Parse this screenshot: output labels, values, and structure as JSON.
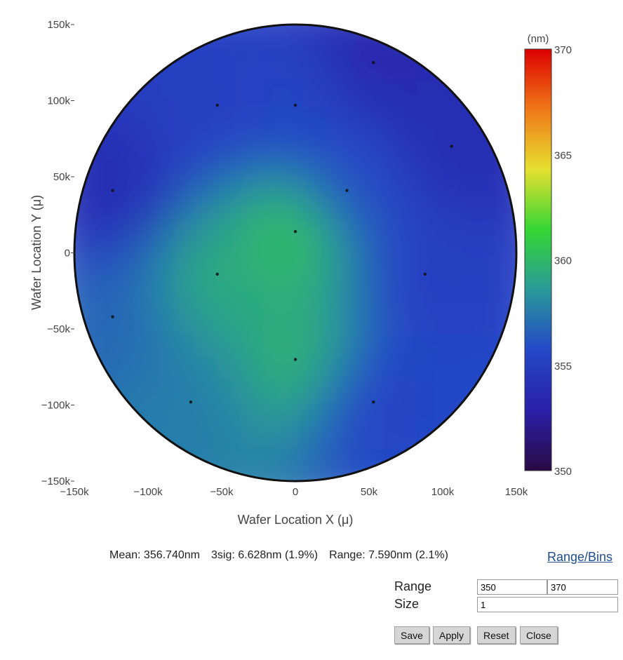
{
  "chart_data": {
    "type": "heatmap",
    "xlabel": "Wafer Location X (μ)",
    "ylabel": "Wafer Location Y (μ)",
    "xlim": [
      -150000,
      150000
    ],
    "ylim": [
      -150000,
      150000
    ],
    "x_ticks": [
      "−150k",
      "−100k",
      "−50k",
      "0",
      "50k",
      "100k",
      "150k"
    ],
    "x_tick_values": [
      -150000,
      -100000,
      -50000,
      0,
      50000,
      100000,
      150000
    ],
    "y_ticks": [
      "150k",
      "100k",
      "50k",
      "0",
      "−50k",
      "−100k",
      "−150k"
    ],
    "y_tick_values": [
      150000,
      100000,
      50000,
      0,
      -50000,
      -100000,
      -150000
    ],
    "colorbar": {
      "title": "(nm)",
      "min": 350,
      "max": 370,
      "tick_labels": [
        "370",
        "365",
        "360",
        "355",
        "350"
      ],
      "tick_values": [
        370,
        365,
        360,
        355,
        350
      ]
    },
    "wafer_radius": 150000,
    "measurement_points": [
      {
        "x": 0,
        "y": 97000,
        "value": 355.5
      },
      {
        "x": -53000,
        "y": 97000,
        "value": 355.2
      },
      {
        "x": 53000,
        "y": 125000,
        "value": 353.5
      },
      {
        "x": 106000,
        "y": 70000,
        "value": 353.8
      },
      {
        "x": 35000,
        "y": 41000,
        "value": 356.0
      },
      {
        "x": -124000,
        "y": 41000,
        "value": 353.8
      },
      {
        "x": 0,
        "y": 14000,
        "value": 360.3
      },
      {
        "x": -53000,
        "y": -14000,
        "value": 359.3
      },
      {
        "x": 88000,
        "y": -14000,
        "value": 355.2
      },
      {
        "x": -124000,
        "y": -42000,
        "value": 356.8
      },
      {
        "x": 0,
        "y": -70000,
        "value": 359.6
      },
      {
        "x": -71000,
        "y": -98000,
        "value": 357.6
      },
      {
        "x": 53000,
        "y": -98000,
        "value": 355.4
      }
    ]
  },
  "stats": {
    "mean": "Mean: 356.740nm",
    "sig": "3sig: 6.628nm (1.9%)",
    "range": "Range: 7.590nm (2.1%)"
  },
  "range_bins_link": "Range/Bins",
  "form": {
    "range_label": "Range",
    "size_label": "Size",
    "range_min": "350",
    "range_max": "370",
    "size": "1"
  },
  "buttons": {
    "save": "Save",
    "apply": "Apply",
    "reset": "Reset",
    "close": "Close"
  },
  "colors": {
    "colorscale": [
      "#2a0a45",
      "#2a1fa8",
      "#2448c8",
      "#2a9a9a",
      "#34d634",
      "#e6e030",
      "#f07818",
      "#dc0000"
    ]
  }
}
